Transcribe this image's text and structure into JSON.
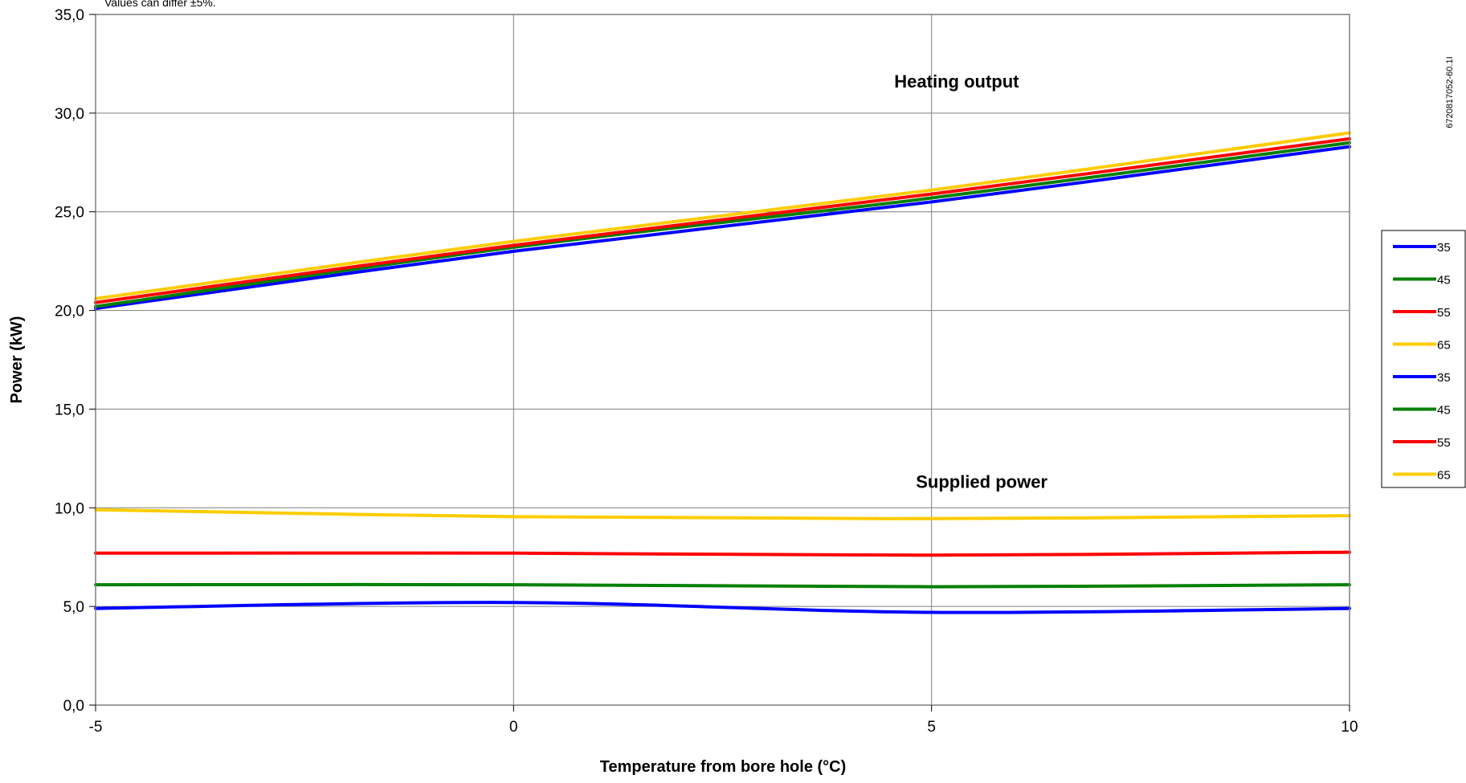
{
  "chart_data": {
    "type": "line",
    "note": "Values can differ ±5%.",
    "document_id": "6720817052-60.1I",
    "xlabel": "Temperature from bore hole (°C)",
    "ylabel": "Power (kW)",
    "xlim": [
      -5,
      10
    ],
    "ylim": [
      0,
      35
    ],
    "x_ticks": [
      -5,
      0,
      5,
      10
    ],
    "x_tick_labels": [
      "-5",
      "0",
      "5",
      "10"
    ],
    "y_ticks": [
      0,
      5,
      10,
      15,
      20,
      25,
      30,
      35
    ],
    "y_tick_labels": [
      "0,0",
      "5,0",
      "10,0",
      "15,0",
      "20,0",
      "25,0",
      "30,0",
      "35,0"
    ],
    "grid": true,
    "legend_position": "right",
    "annotations": [
      {
        "text": "Heating output",
        "x": 5.3,
        "y": 31.3
      },
      {
        "text": "Supplied power",
        "x": 5.6,
        "y": 11.0
      }
    ],
    "x": [
      -5,
      0,
      5,
      10
    ],
    "series": [
      {
        "name": "35",
        "color": "#0000ff",
        "values": [
          20.1,
          23.0,
          25.5,
          28.3
        ]
      },
      {
        "name": "45",
        "color": "#008000",
        "values": [
          20.2,
          23.2,
          25.7,
          28.5
        ]
      },
      {
        "name": "55",
        "color": "#ff0000",
        "values": [
          20.4,
          23.3,
          25.9,
          28.7
        ]
      },
      {
        "name": "65",
        "color": "#ffcc00",
        "values": [
          20.6,
          23.5,
          26.1,
          29.0
        ]
      },
      {
        "name": "35",
        "color": "#0000ff",
        "values": [
          4.9,
          5.2,
          4.7,
          4.9
        ]
      },
      {
        "name": "45",
        "color": "#008000",
        "values": [
          6.1,
          6.1,
          6.0,
          6.1
        ]
      },
      {
        "name": "55",
        "color": "#ff0000",
        "values": [
          7.7,
          7.7,
          7.6,
          7.75
        ]
      },
      {
        "name": "65",
        "color": "#ffcc00",
        "values": [
          9.9,
          9.55,
          9.45,
          9.6
        ]
      }
    ]
  }
}
